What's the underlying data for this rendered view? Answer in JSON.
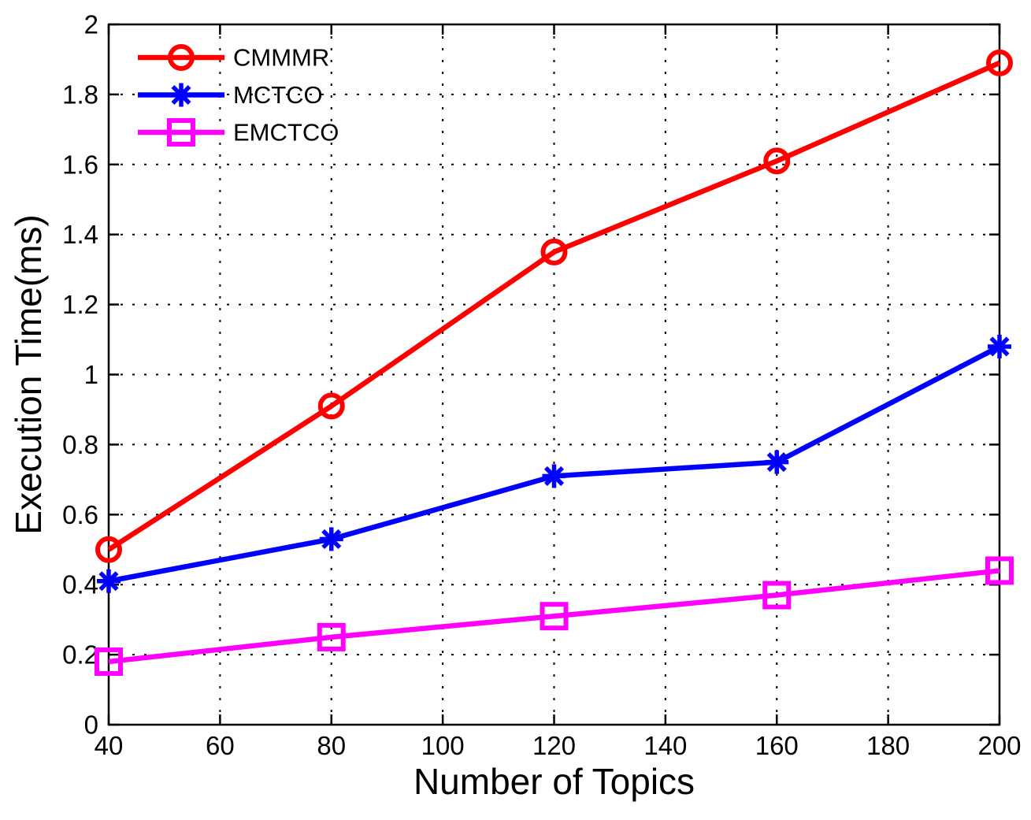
{
  "figure": {
    "background_color": "#ffffff",
    "axis_color": "#000000"
  },
  "chart_data": {
    "type": "line",
    "title": "",
    "xlabel": "Number of Topics",
    "ylabel": "Execution Time(ms)",
    "xlim": [
      40,
      200
    ],
    "ylim": [
      0,
      2
    ],
    "x_ticks": [
      40,
      60,
      80,
      100,
      120,
      140,
      160,
      180,
      200
    ],
    "x_tick_labels": [
      "40",
      "60",
      "80",
      "100",
      "120",
      "140",
      "160",
      "180",
      "200"
    ],
    "y_ticks": [
      0,
      0.2,
      0.4,
      0.6,
      0.8,
      1,
      1.2,
      1.4,
      1.6,
      1.8,
      2
    ],
    "y_tick_labels": [
      "0",
      "0.2",
      "0.4",
      "0.6",
      "0.8",
      "1",
      "1.2",
      "1.4",
      "1.6",
      "1.8",
      "2"
    ],
    "grid": "dotted",
    "grid_color": "#000000",
    "legend_position": "top-left",
    "legend_box": false,
    "x": [
      40,
      80,
      120,
      160,
      200
    ],
    "series": [
      {
        "name": "CMMMR",
        "color": "#FF0000",
        "marker": "circle",
        "values": [
          0.5,
          0.91,
          1.35,
          1.61,
          1.89
        ]
      },
      {
        "name": "MCTCO",
        "color": "#0000FF",
        "marker": "asterisk",
        "values": [
          0.41,
          0.53,
          0.71,
          0.75,
          1.08
        ]
      },
      {
        "name": "EMCTCO",
        "color": "#FF00FF",
        "marker": "square",
        "values": [
          0.18,
          0.25,
          0.31,
          0.37,
          0.44
        ]
      }
    ]
  }
}
